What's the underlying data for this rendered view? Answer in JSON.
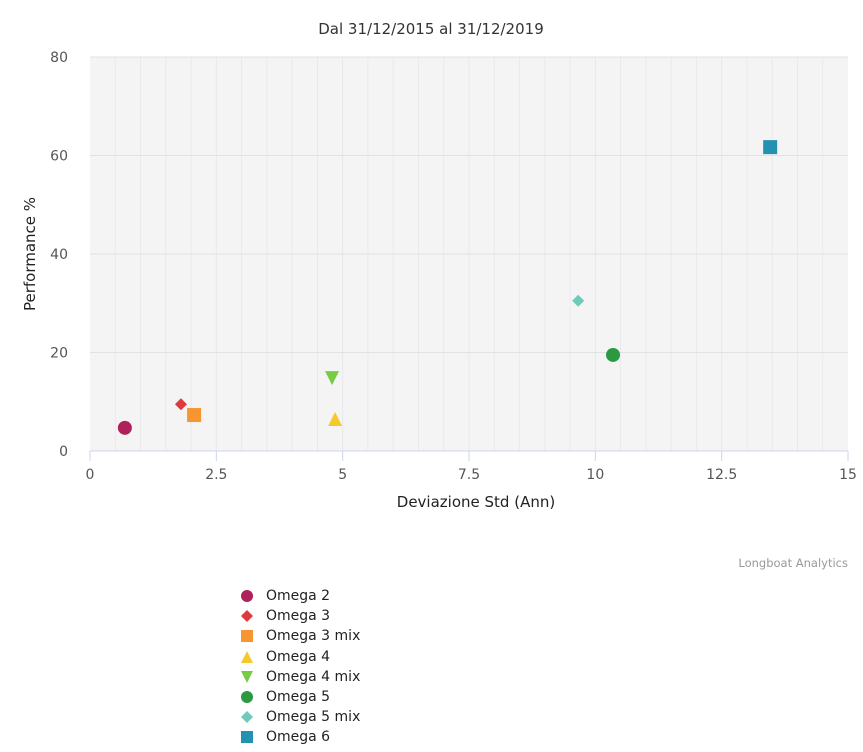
{
  "chart_data": {
    "type": "scatter",
    "title": "Dal 31/12/2015 al 31/12/2019",
    "xlabel": "Deviazione Std (Ann)",
    "ylabel": "Performance %",
    "xlim": [
      0,
      15
    ],
    "ylim": [
      0,
      80
    ],
    "xticks": [
      "0",
      "2.5",
      "5",
      "7.5",
      "10",
      "12.5",
      "15"
    ],
    "yticks": [
      "0",
      "20",
      "40",
      "60",
      "80"
    ],
    "grid": true,
    "legend_position": "bottom-left",
    "series": [
      {
        "name": "Omega 2",
        "symbol": "circle",
        "color": "#b0205a",
        "x": 0.69,
        "y": 4.7
      },
      {
        "name": "Omega 3",
        "symbol": "diamond",
        "color": "#e03a3a",
        "x": 1.8,
        "y": 9.5
      },
      {
        "name": "Omega 3 mix",
        "symbol": "square",
        "color": "#f79530",
        "x": 2.06,
        "y": 7.3
      },
      {
        "name": "Omega 4",
        "symbol": "triangle",
        "color": "#f5c92a",
        "x": 4.85,
        "y": 6.5
      },
      {
        "name": "Omega 4 mix",
        "symbol": "triangle-down",
        "color": "#77cc44",
        "x": 4.79,
        "y": 14.8
      },
      {
        "name": "Omega 5",
        "symbol": "circle",
        "color": "#2a9940",
        "x": 10.35,
        "y": 19.5
      },
      {
        "name": "Omega 5 mix",
        "symbol": "diamond",
        "color": "#6fcabb",
        "x": 9.66,
        "y": 30.5
      },
      {
        "name": "Omega 6",
        "symbol": "square",
        "color": "#2391b0",
        "x": 13.46,
        "y": 61.7
      }
    ]
  },
  "credits": "Longboat Analytics"
}
